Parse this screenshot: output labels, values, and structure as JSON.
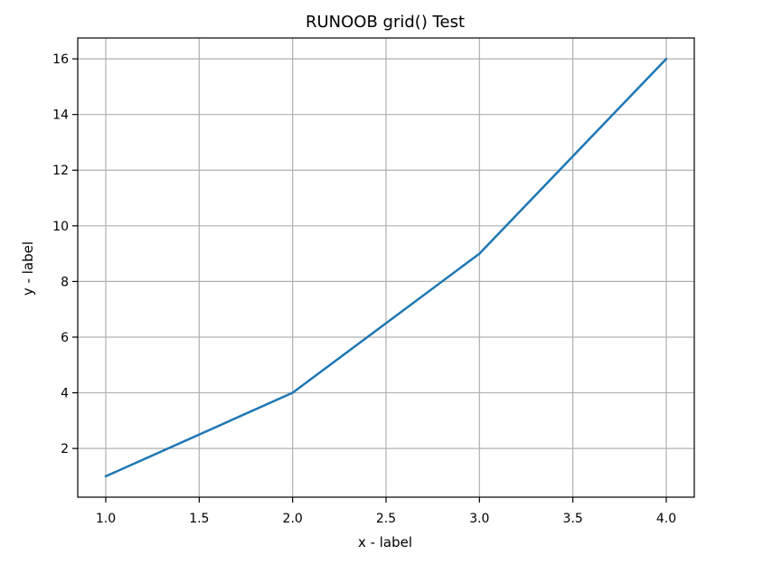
{
  "chart_data": {
    "type": "line",
    "title": "RUNOOB grid() Test",
    "xlabel": "x - label",
    "ylabel": "y - label",
    "x": [
      1,
      2,
      3,
      4
    ],
    "series": [
      {
        "values": [
          1,
          4,
          9,
          16
        ]
      }
    ],
    "xlim": [
      0.85,
      4.15
    ],
    "ylim": [
      0.25,
      16.75
    ],
    "xticks": [
      "1.0",
      "1.5",
      "2.0",
      "2.5",
      "3.0",
      "3.5",
      "4.0"
    ],
    "yticks": [
      "2",
      "4",
      "6",
      "8",
      "10",
      "12",
      "14",
      "16"
    ],
    "grid": true,
    "legend": "none",
    "line_color": "#1f77b4",
    "grid_color": "#b0b0b0"
  }
}
